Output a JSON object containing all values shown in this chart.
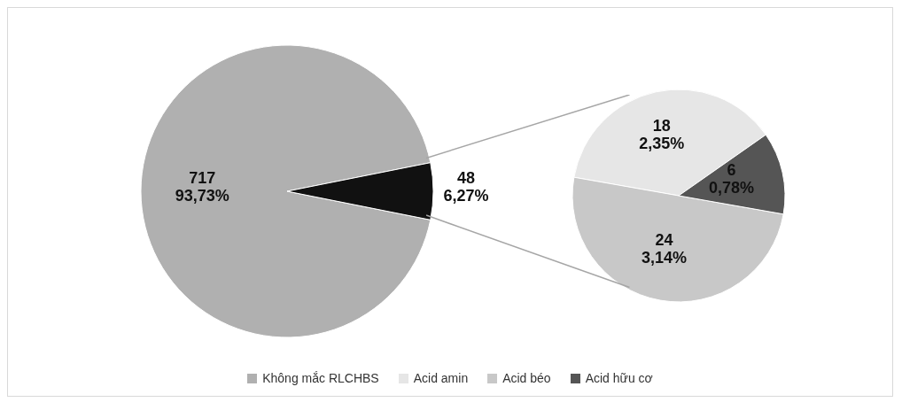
{
  "chart_data": [
    {
      "type": "pie",
      "categories": [
        "Không mắc RLCHBS",
        null
      ],
      "values": [
        717,
        48
      ],
      "colors": [
        "#b0b0b0",
        "#111111"
      ],
      "value_labels": [
        "717\n93,73%",
        "48\n6,27%"
      ],
      "legend": "bottom"
    },
    {
      "type": "pie",
      "categories": [
        "Acid amin",
        "Acid béo",
        "Acid hữu cơ"
      ],
      "values": [
        18,
        24,
        6
      ],
      "colors": [
        "#e6e6e6",
        "#c8c8c8",
        "#555555"
      ],
      "value_labels": [
        "18\n2,35%",
        "24\n3,14%",
        "6\n0,78%"
      ],
      "legend": "bottom"
    }
  ]
}
